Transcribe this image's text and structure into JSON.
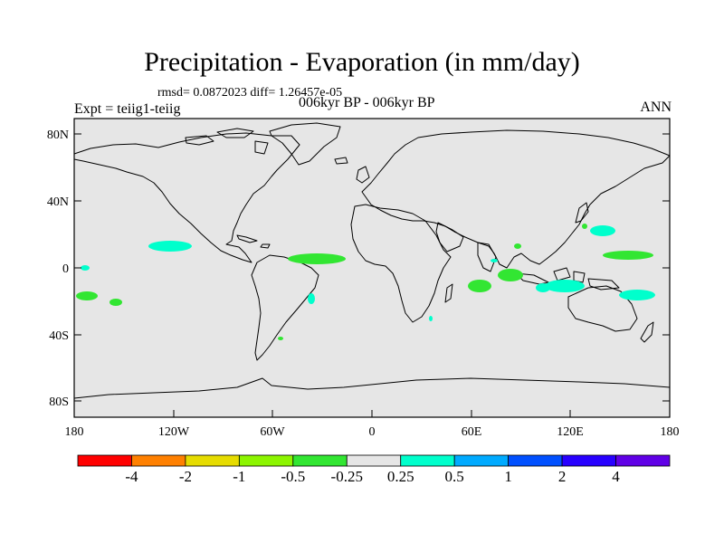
{
  "figure": {
    "title": "Precipitation - Evaporation (in mm/day)",
    "stats": "rmsd= 0.0872023 diff= 1.26457e-05",
    "period": "006kyr BP - 006kyr BP",
    "experiment": "Expt = teiig1-teiig",
    "season": "ANN"
  },
  "map": {
    "projection": "cylindrical-equidistant",
    "ocean_fill": "#e6e6e6",
    "lat_ticks": [
      "80N",
      "40N",
      "0",
      "40S",
      "80S"
    ],
    "lon_ticks": [
      "180",
      "120W",
      "60W",
      "0",
      "60E",
      "120E",
      "180"
    ]
  },
  "colorbar": {
    "colors": [
      "#ff0000",
      "#ff8000",
      "#e6dc00",
      "#8cf500",
      "#32e632",
      "#e6e6e6",
      "#00ffcc",
      "#00aaff",
      "#0050ff",
      "#2800ff",
      "#6000e6"
    ],
    "labels": [
      "-4",
      "-2",
      "-1",
      "-0.5",
      "-0.25",
      "0.25",
      "0.5",
      "1",
      "2",
      "4"
    ]
  }
}
